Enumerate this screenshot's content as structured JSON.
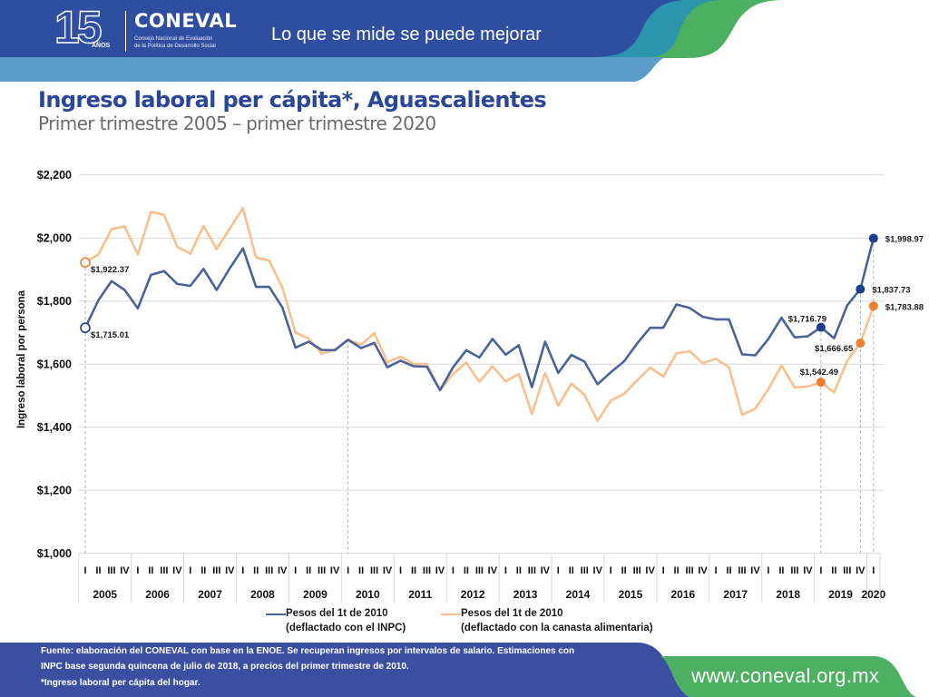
{
  "header": {
    "logo_number": "15",
    "logo_years": "AÑOS",
    "org_name": "CONEVAL",
    "org_fullname_line1": "Consejo Nacional de Evaluación",
    "org_fullname_line2": "de la Política de Desarrollo Social",
    "tagline": "Lo que se mide se puede mejorar",
    "colors": {
      "dark_blue": "#2f4ea0",
      "light_blue": "#5b9ccb",
      "teal": "#2c95ad",
      "green": "#4daf62"
    }
  },
  "page": {
    "title": "Ingreso laboral per cápita*, Aguascalientes",
    "subtitle": "Primer trimestre 2005 – primer trimestre 2020"
  },
  "chart_data": {
    "type": "line",
    "title": "Ingreso laboral per cápita*, Aguascalientes",
    "subtitle": "Primer trimestre 2005 – primer trimestre 2020",
    "xlabel": "",
    "ylabel": "Ingreso laboral por persona",
    "ylim": [
      1000,
      2200
    ],
    "yticks": [
      1000,
      1200,
      1400,
      1600,
      1800,
      2000,
      2200
    ],
    "ytick_labels": [
      "$1,000",
      "$1,200",
      "$1,400",
      "$1,600",
      "$1,800",
      "$2,000",
      "$2,200"
    ],
    "grid": true,
    "legend_position": "bottom",
    "x_quarters": [
      "I",
      "II",
      "III",
      "IV",
      "I",
      "II",
      "III",
      "IV",
      "I",
      "II",
      "III",
      "IV",
      "I",
      "II",
      "III",
      "IV",
      "I",
      "II",
      "III",
      "IV",
      "I",
      "II",
      "III",
      "IV",
      "I",
      "II",
      "III",
      "IV",
      "I",
      "II",
      "III",
      "IV",
      "I",
      "II",
      "III",
      "IV",
      "I",
      "II",
      "III",
      "IV",
      "I",
      "II",
      "III",
      "IV",
      "I",
      "II",
      "III",
      "IV",
      "I",
      "II",
      "III",
      "IV",
      "I",
      "II",
      "III",
      "IV",
      "I",
      "II",
      "III",
      "IV",
      "I"
    ],
    "x_years": [
      {
        "label": "2005",
        "quarters": 4
      },
      {
        "label": "2006",
        "quarters": 4
      },
      {
        "label": "2007",
        "quarters": 4
      },
      {
        "label": "2008",
        "quarters": 4
      },
      {
        "label": "2009",
        "quarters": 4
      },
      {
        "label": "2010",
        "quarters": 4
      },
      {
        "label": "2011",
        "quarters": 4
      },
      {
        "label": "2012",
        "quarters": 4
      },
      {
        "label": "2013",
        "quarters": 4
      },
      {
        "label": "2014",
        "quarters": 4
      },
      {
        "label": "2015",
        "quarters": 4
      },
      {
        "label": "2016",
        "quarters": 4
      },
      {
        "label": "2017",
        "quarters": 4
      },
      {
        "label": "2018",
        "quarters": 4
      },
      {
        "label": "2019",
        "quarters": 4
      },
      {
        "label": "2020",
        "quarters": 1
      }
    ],
    "series": [
      {
        "name": "Pesos del 1t de 2010 (deflactado con el INPC)",
        "legend_line1": "Pesos del 1t de 2010",
        "legend_line2": "(deflactado con el INPC)",
        "color": "#4b6398",
        "marker_color": "#1f3c93",
        "values": [
          1715.01,
          1803,
          1863,
          1835,
          1777,
          1883,
          1895,
          1854,
          1848,
          1902,
          1835,
          1904,
          1967,
          1845,
          1845,
          1780,
          1652,
          1671,
          1645,
          1644,
          1677,
          1651,
          1667,
          1590,
          1611,
          1593,
          1592,
          1517,
          1590,
          1644,
          1621,
          1680,
          1630,
          1660,
          1527,
          1671,
          1572,
          1629,
          1608,
          1536,
          1574,
          1608,
          1665,
          1715,
          1715,
          1789,
          1778,
          1750,
          1742,
          1742,
          1631,
          1628,
          1680,
          1747,
          1685,
          1688,
          1716.79,
          1682,
          1786,
          1837.73,
          1998.97
        ]
      },
      {
        "name": "Pesos del 1t de 2010 (deflactado con la canasta alimentaria)",
        "legend_line1": "Pesos del 1t de 2010",
        "legend_line2": "(deflactado con la canasta alimentaria)",
        "color": "#f9c08d",
        "marker_color": "#ee7f2e",
        "values": [
          1922.37,
          1948,
          2028,
          2037,
          1948,
          2083,
          2073,
          1972,
          1950,
          2038,
          1965,
          2030,
          2095,
          1938,
          1928,
          1843,
          1700,
          1681,
          1633,
          1646,
          1677,
          1662,
          1698,
          1606,
          1624,
          1601,
          1601,
          1517,
          1569,
          1605,
          1544,
          1593,
          1545,
          1569,
          1442,
          1572,
          1468,
          1538,
          1503,
          1420,
          1484,
          1505,
          1548,
          1589,
          1560,
          1634,
          1641,
          1603,
          1617,
          1590,
          1439,
          1459,
          1521,
          1596,
          1526,
          1529,
          1542.49,
          1510,
          1611,
          1666.65,
          1783.88
        ]
      }
    ],
    "annotations": [
      {
        "series": 1,
        "period": "2005-I",
        "index": 0,
        "label": "$1,922.37",
        "marker": "hollow",
        "label_position": "below-right"
      },
      {
        "series": 0,
        "period": "2005-I",
        "index": 0,
        "label": "$1,715.01",
        "marker": "hollow",
        "label_position": "below-right"
      },
      {
        "series": 0,
        "period": "2019-I",
        "index": 56,
        "label": "$1,716.79",
        "marker": "filled",
        "label_position": "above-left"
      },
      {
        "series": 1,
        "period": "2019-I",
        "index": 56,
        "label": "$1,542.49",
        "marker": "filled",
        "label_position": "above"
      },
      {
        "series": 1,
        "period": "2019-IV",
        "index": 59,
        "label": "$1,666.65",
        "marker": "filled",
        "label_position": "below-left"
      },
      {
        "series": 0,
        "period": "2019-IV",
        "index": 59,
        "label": "$1,837.73",
        "marker": "filled",
        "label_position": "right"
      },
      {
        "series": 0,
        "period": "2020-I",
        "index": 60,
        "label": "$1,998.97",
        "marker": "filled",
        "label_position": "right"
      },
      {
        "series": 1,
        "period": "2020-I",
        "index": 60,
        "label": "$1,783.88",
        "marker": "filled",
        "label_position": "right"
      }
    ],
    "reference_lines_at_index": [
      0,
      20,
      56,
      59,
      60
    ]
  },
  "footer": {
    "source_line1": "Fuente: elaboración  del CONEVAL con base en la ENOE. Se recuperan ingresos por intervalos de salario. Estimaciones con",
    "source_line2": "INPC base segunda quincena de julio de 2018, a precios del primer trimestre de 2010.",
    "note": "*Ingreso laboral per cápita del hogar.",
    "url": "www.coneval.org.mx",
    "colors": {
      "band": "#3b4fa0",
      "url_band": "#4daf62"
    }
  }
}
